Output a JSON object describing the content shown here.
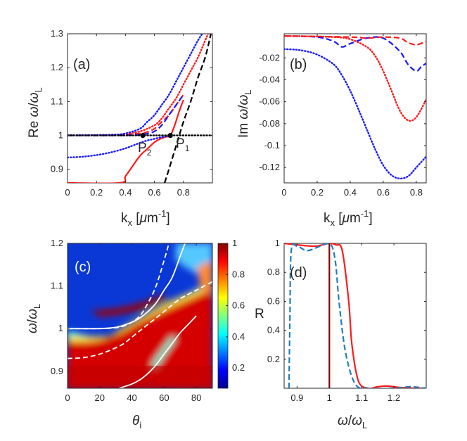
{
  "figure": {
    "panels": [
      {
        "id": "a",
        "label": "(a)"
      },
      {
        "id": "b",
        "label": "(b)"
      },
      {
        "id": "c",
        "label": "(c)"
      },
      {
        "id": "d",
        "label": "(d)"
      }
    ]
  },
  "colors": {
    "red": "#ff1a1a",
    "blue": "#1a1aff",
    "black": "#000000",
    "teal": "#1f7fbf",
    "darkred": "#8b0000"
  },
  "chart_data": [
    {
      "panel": "a",
      "type": "line",
      "title": "",
      "xlabel": "k_x [μm^-1]",
      "ylabel": "Re ω/ω_L",
      "xlim": [
        0,
        1.0
      ],
      "ylim": [
        0.86,
        1.3
      ],
      "xticks": [
        "0",
        "0.2",
        "0.4",
        "0.6",
        "0.8"
      ],
      "yticks": [
        "0.9",
        "1",
        "1.1",
        "1.2",
        "1.3"
      ],
      "annotations": [
        "P_1",
        "P_2"
      ],
      "points": [
        {
          "name": "P_1",
          "x": 0.71,
          "y": 1.0
        },
        {
          "name": "P_2",
          "x": 0.52,
          "y": 1.0
        }
      ],
      "series": [
        {
          "name": "red-solid",
          "color": "red",
          "style": "solid",
          "x": [
            0.0,
            0.36,
            0.4,
            0.45,
            0.5,
            0.55,
            0.6,
            0.64,
            0.68,
            0.71,
            0.74,
            0.77,
            0.8
          ],
          "y": [
            0.86,
            0.86,
            0.88,
            0.91,
            0.94,
            0.96,
            0.98,
            0.99,
            0.996,
            1.0,
            1.03,
            1.07,
            1.105
          ]
        },
        {
          "name": "red-dotted",
          "color": "red",
          "style": "dotted",
          "x": [
            0.0,
            0.3,
            0.4,
            0.5,
            0.6,
            0.65,
            0.7,
            0.75,
            0.8,
            0.85,
            0.9,
            0.95,
            0.97
          ],
          "y": [
            1.0,
            1.002,
            1.005,
            1.012,
            1.03,
            1.05,
            1.08,
            1.11,
            1.15,
            1.19,
            1.23,
            1.28,
            1.3
          ]
        },
        {
          "name": "red-dashed",
          "color": "red",
          "style": "dashed",
          "x": [
            0.0,
            0.3,
            0.4,
            0.5,
            0.55,
            0.6,
            0.65,
            0.7,
            0.75,
            0.8
          ],
          "y": [
            1.0,
            1.0,
            1.002,
            1.006,
            1.01,
            1.02,
            1.04,
            1.06,
            1.09,
            1.12
          ]
        },
        {
          "name": "blue-dotted-upper",
          "color": "blue",
          "style": "dotted",
          "x": [
            0.0,
            0.3,
            0.4,
            0.5,
            0.55,
            0.6,
            0.65,
            0.7,
            0.75,
            0.8,
            0.85,
            0.9,
            0.93
          ],
          "y": [
            1.0,
            1.002,
            1.006,
            1.02,
            1.04,
            1.06,
            1.09,
            1.12,
            1.16,
            1.2,
            1.24,
            1.28,
            1.3
          ]
        },
        {
          "name": "blue-dotted-lower",
          "color": "blue",
          "style": "dotted",
          "x": [
            0.0,
            0.1,
            0.2,
            0.3,
            0.4,
            0.45,
            0.5,
            0.55,
            0.6,
            0.65,
            0.7
          ],
          "y": [
            0.935,
            0.937,
            0.942,
            0.95,
            0.962,
            0.97,
            0.978,
            0.985,
            0.99,
            0.995,
            0.998
          ]
        },
        {
          "name": "blue-dashed",
          "color": "blue",
          "style": "dashed",
          "x": [
            0.0,
            0.3,
            0.4,
            0.5,
            0.55,
            0.6,
            0.65,
            0.7,
            0.75,
            0.8
          ],
          "y": [
            1.0,
            1.0,
            1.0,
            1.002,
            1.005,
            1.012,
            1.03,
            1.06,
            1.09,
            1.12
          ]
        },
        {
          "name": "light-line",
          "color": "black",
          "style": "dashed",
          "x": [
            0.67,
            0.7,
            0.75,
            0.8,
            0.85,
            0.9,
            0.95,
            0.99
          ],
          "y": [
            0.86,
            0.9,
            0.97,
            1.04,
            1.1,
            1.17,
            1.23,
            1.3
          ]
        },
        {
          "name": "exciton-level",
          "color": "black",
          "style": "dotted",
          "x": [
            0.0,
            1.0
          ],
          "y": [
            1.0,
            1.0
          ]
        }
      ]
    },
    {
      "panel": "b",
      "type": "line",
      "title": "",
      "xlabel": "k_x [μm^-1]",
      "ylabel": "Im ω/ω_L",
      "xlim": [
        0,
        0.86
      ],
      "ylim": [
        -0.134,
        0.002
      ],
      "xticks": [
        "0",
        "0.2",
        "0.4",
        "0.6",
        "0.8"
      ],
      "yticks": [
        "-0.02",
        "-0.04",
        "-0.06",
        "-0.08",
        "-0.1",
        "-0.12"
      ],
      "series": [
        {
          "name": "blue-dotted",
          "color": "blue",
          "style": "dotted",
          "x": [
            0.0,
            0.1,
            0.2,
            0.3,
            0.35,
            0.4,
            0.45,
            0.5,
            0.55,
            0.6,
            0.65,
            0.7,
            0.75,
            0.8,
            0.86
          ],
          "y": [
            -0.012,
            -0.013,
            -0.017,
            -0.026,
            -0.036,
            -0.05,
            -0.067,
            -0.085,
            -0.103,
            -0.118,
            -0.127,
            -0.13,
            -0.128,
            -0.12,
            -0.11
          ]
        },
        {
          "name": "red-dotted",
          "color": "red",
          "style": "dotted",
          "x": [
            0.0,
            0.3,
            0.4,
            0.5,
            0.55,
            0.6,
            0.65,
            0.7,
            0.75,
            0.8,
            0.86
          ],
          "y": [
            0.0,
            -0.001,
            -0.003,
            -0.01,
            -0.018,
            -0.032,
            -0.05,
            -0.068,
            -0.077,
            -0.074,
            -0.058
          ]
        },
        {
          "name": "blue-dashed",
          "color": "blue",
          "style": "dashed",
          "x": [
            0.0,
            0.2,
            0.3,
            0.35,
            0.4,
            0.5,
            0.6,
            0.7,
            0.75,
            0.8,
            0.83,
            0.86
          ],
          "y": [
            0.0,
            -0.001,
            -0.005,
            -0.01,
            -0.007,
            -0.002,
            -0.002,
            -0.014,
            -0.026,
            -0.032,
            -0.028,
            -0.025
          ]
        },
        {
          "name": "red-dashed",
          "color": "red",
          "style": "dashed",
          "x": [
            0.0,
            0.4,
            0.5,
            0.6,
            0.7,
            0.75,
            0.8,
            0.86
          ],
          "y": [
            0.0,
            -0.001,
            -0.002,
            -0.001,
            -0.002,
            -0.006,
            -0.008,
            -0.005
          ]
        }
      ]
    },
    {
      "panel": "c",
      "type": "heatmap",
      "title": "",
      "xlabel": "θ_i",
      "ylabel": "ω/ω_L",
      "xlim": [
        0,
        90
      ],
      "ylim": [
        0.86,
        1.2
      ],
      "xticks": [
        "0",
        "20",
        "40",
        "60",
        "80"
      ],
      "yticks": [
        "0.9",
        "1",
        "1.1",
        "1.2"
      ],
      "colorbar": {
        "range": [
          0.07,
          1.0
        ],
        "ticks": [
          "0.2",
          "0.4",
          "0.6",
          "0.8",
          "1"
        ]
      },
      "overlay_curves": [
        {
          "name": "white-dashed-steep",
          "style": "dashed",
          "x": [
            0.0,
            20,
            30,
            35,
            40,
            45,
            50,
            55,
            60,
            63
          ],
          "y": [
            1.0,
            1.0,
            1.002,
            1.006,
            1.015,
            1.03,
            1.06,
            1.1,
            1.16,
            1.2
          ]
        },
        {
          "name": "white-dashed-lower",
          "style": "dashed",
          "x": [
            0.0,
            10,
            20,
            30,
            35,
            40,
            50,
            60,
            70,
            80,
            90
          ],
          "y": [
            0.93,
            0.932,
            0.94,
            0.955,
            0.965,
            0.98,
            1.01,
            1.04,
            1.07,
            1.09,
            1.11
          ]
        },
        {
          "name": "white-solid-steep",
          "style": "solid",
          "x": [
            0.0,
            20,
            30,
            35,
            40,
            45,
            50,
            55,
            60,
            65,
            70,
            73
          ],
          "y": [
            1.0,
            1.0,
            1.003,
            1.008,
            1.015,
            1.025,
            1.04,
            1.06,
            1.09,
            1.12,
            1.17,
            1.2
          ]
        },
        {
          "name": "white-solid-lower",
          "style": "solid",
          "x": [
            32,
            40,
            45,
            50,
            55,
            60,
            65,
            70,
            75,
            80
          ],
          "y": [
            0.86,
            0.87,
            0.88,
            0.895,
            0.915,
            0.94,
            0.965,
            0.99,
            1.01,
            1.03
          ]
        }
      ]
    },
    {
      "panel": "d",
      "type": "line",
      "title": "",
      "xlabel": "ω/ω_L",
      "ylabel": "R",
      "xlim": [
        0.86,
        1.3
      ],
      "ylim": [
        0,
        1.0
      ],
      "xticks": [
        "0.9",
        "1",
        "1.1",
        "1.2"
      ],
      "yticks": [
        "0.2",
        "0.4",
        "0.6",
        "0.8",
        "1"
      ],
      "series": [
        {
          "name": "red-solid",
          "color": "red",
          "style": "solid",
          "x": [
            0.86,
            0.9,
            0.95,
            0.98,
            1.0,
            1.02,
            1.04,
            1.06,
            1.07,
            1.09,
            1.12,
            1.15,
            1.18,
            1.22,
            1.26,
            1.3
          ],
          "y": [
            1.0,
            0.99,
            0.98,
            0.99,
            1.0,
            0.99,
            0.95,
            0.6,
            0.3,
            0.05,
            0.0,
            0.01,
            0.015,
            0.005,
            0.0,
            0.0
          ]
        },
        {
          "name": "teal-dashed",
          "color": "teal",
          "style": "dashed",
          "x": [
            0.875,
            0.878,
            0.882,
            0.9,
            0.93,
            0.96,
            0.98,
            0.995,
            1.0,
            1.01,
            1.02,
            1.03,
            1.05,
            1.08,
            1.12,
            1.2,
            1.25,
            1.3
          ],
          "y": [
            0.0,
            0.5,
            0.95,
            0.98,
            0.95,
            0.97,
            0.99,
            1.0,
            0.995,
            0.97,
            0.85,
            0.6,
            0.25,
            0.03,
            0.0,
            0.0,
            0.01,
            0.0
          ]
        },
        {
          "name": "vertical-marker",
          "color": "darkred",
          "style": "solid",
          "x": [
            1.0,
            1.0
          ],
          "y": [
            0.0,
            1.0
          ]
        }
      ]
    }
  ]
}
